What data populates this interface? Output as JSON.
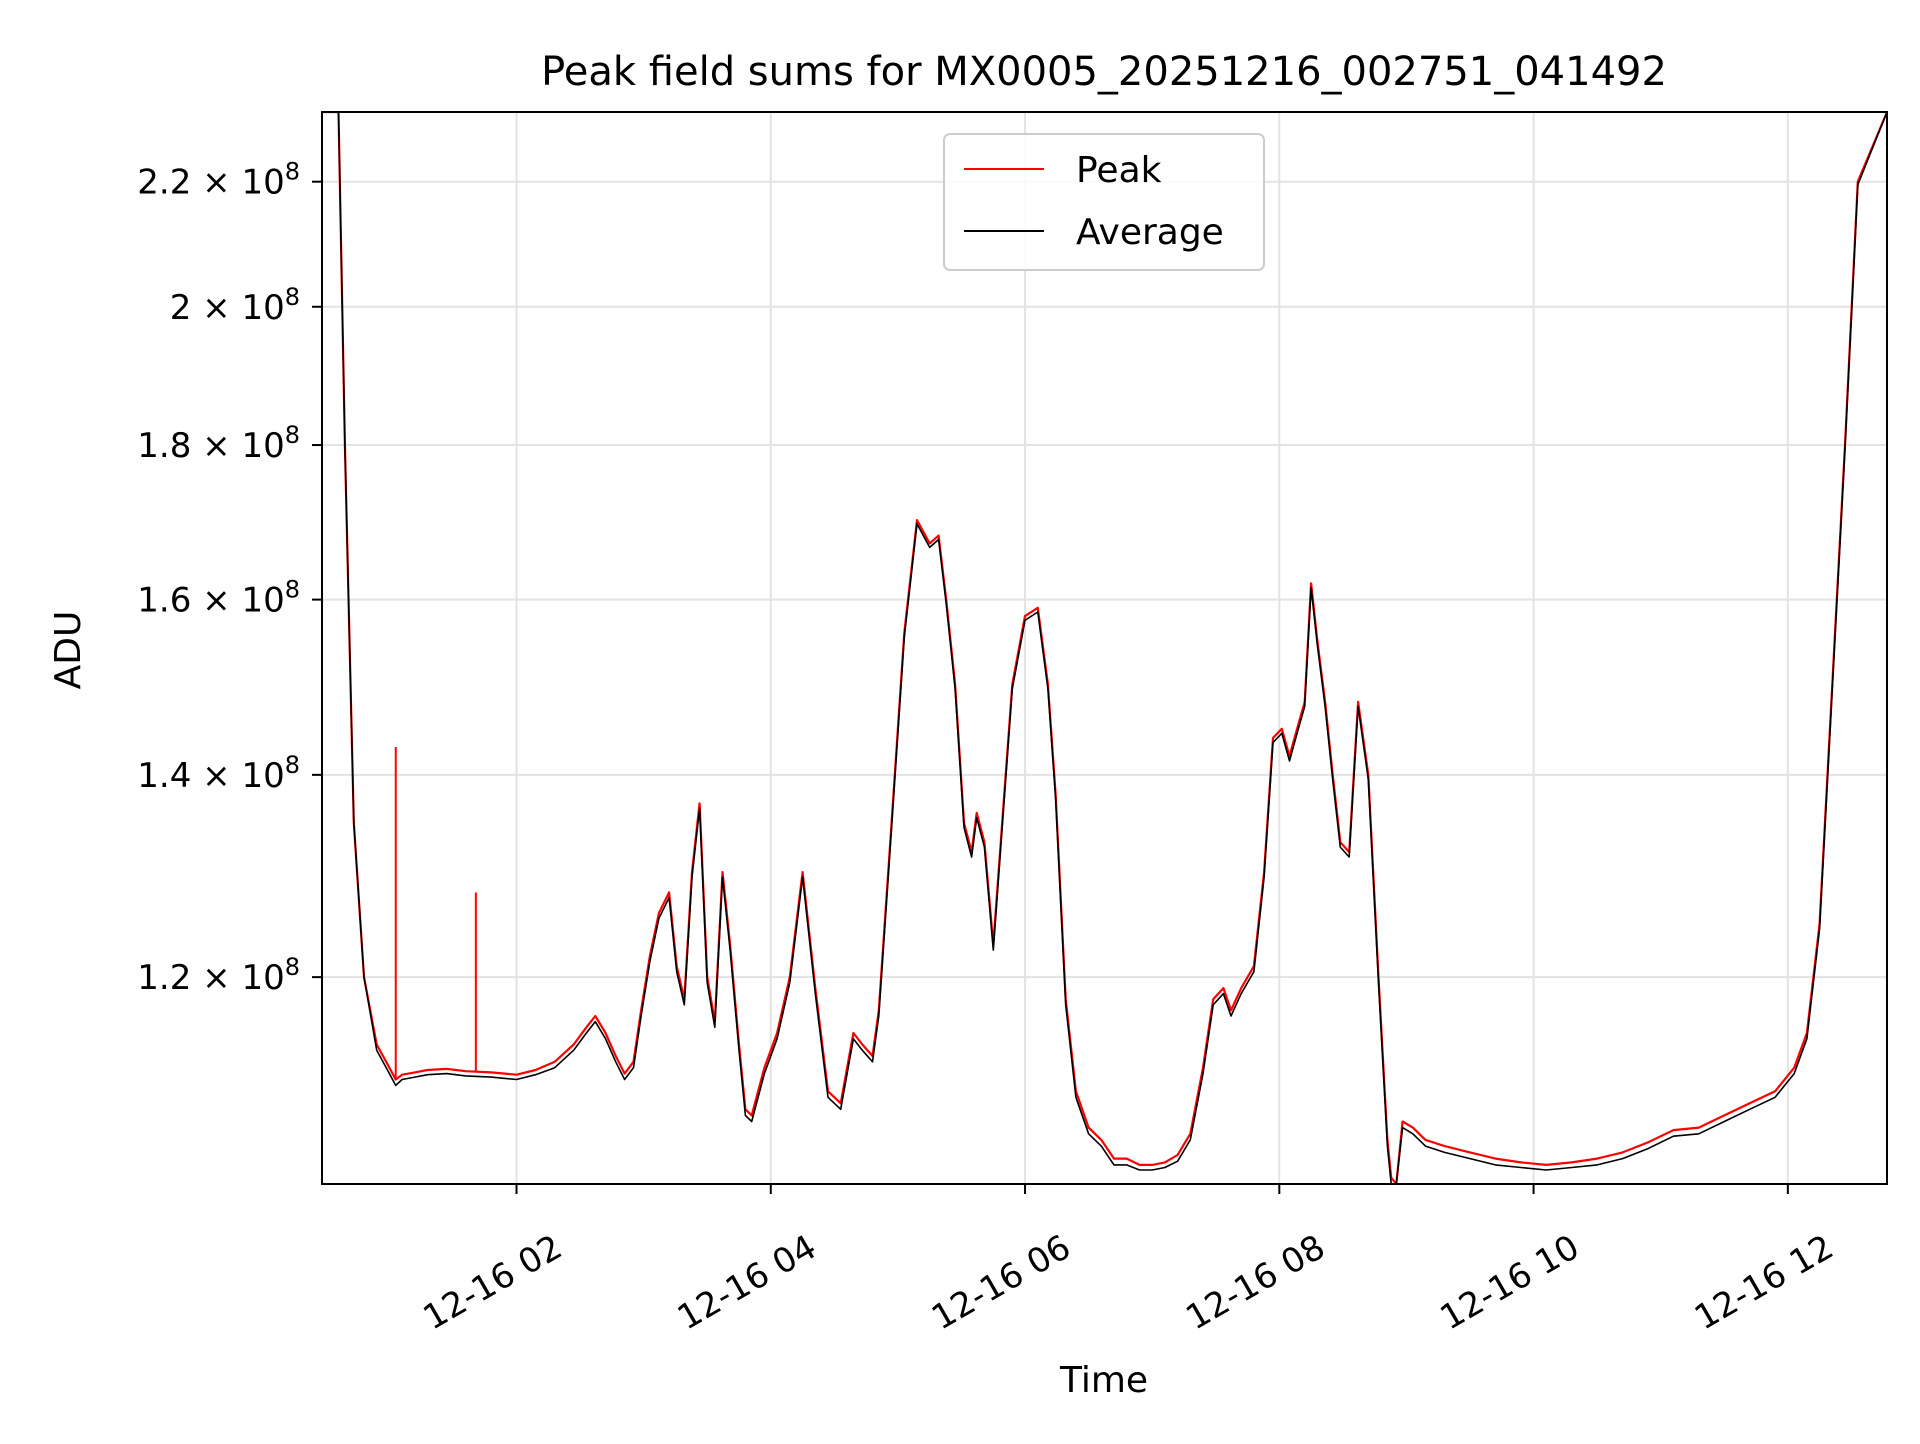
{
  "chart_data": {
    "type": "line",
    "title": "Peak field sums for MX0005_20251216_002751_041492",
    "xlabel": "Time",
    "ylabel": "ADU",
    "yscale": "log",
    "grid": true,
    "legend_position": "upper-center",
    "xlim_hours": [
      0.47,
      12.78
    ],
    "ylim": [
      102500000,
      232000000
    ],
    "x_ticks": [
      {
        "value": 2,
        "label": "12-16 02"
      },
      {
        "value": 4,
        "label": "12-16 04"
      },
      {
        "value": 6,
        "label": "12-16 06"
      },
      {
        "value": 8,
        "label": "12-16 08"
      },
      {
        "value": 10,
        "label": "12-16 10"
      },
      {
        "value": 12,
        "label": "12-16 12"
      }
    ],
    "y_ticks": [
      {
        "value": 120000000,
        "mantissa": "1.2",
        "exponent": "8"
      },
      {
        "value": 140000000,
        "mantissa": "1.4",
        "exponent": "8"
      },
      {
        "value": 160000000,
        "mantissa": "1.6",
        "exponent": "8"
      },
      {
        "value": 180000000,
        "mantissa": "1.8",
        "exponent": "8"
      },
      {
        "value": 200000000,
        "mantissa": "2",
        "exponent": "8"
      },
      {
        "value": 220000000,
        "mantissa": "2.2",
        "exponent": "8"
      }
    ],
    "times_label_suffix": "× 10",
    "series": [
      {
        "name": "Peak",
        "color": "#ff0000",
        "x": [
          0.47,
          0.6,
          0.65,
          0.72,
          0.8,
          0.9,
          1.0,
          1.05,
          1.1,
          1.2,
          1.3,
          1.45,
          1.6,
          1.8,
          2.0,
          2.15,
          2.3,
          2.45,
          2.55,
          2.62,
          2.7,
          2.78,
          2.85,
          2.92,
          2.98,
          3.05,
          3.12,
          3.2,
          3.26,
          3.32,
          3.38,
          3.44,
          3.5,
          3.56,
          3.62,
          3.68,
          3.75,
          3.8,
          3.85,
          3.95,
          4.05,
          4.15,
          4.25,
          4.35,
          4.45,
          4.55,
          4.65,
          4.72,
          4.8,
          4.85,
          4.95,
          5.05,
          5.15,
          5.25,
          5.32,
          5.38,
          5.45,
          5.52,
          5.58,
          5.62,
          5.68,
          5.75,
          5.82,
          5.9,
          6.0,
          6.1,
          6.18,
          6.24,
          6.32,
          6.4,
          6.5,
          6.6,
          6.7,
          6.8,
          6.9,
          7.0,
          7.1,
          7.2,
          7.3,
          7.4,
          7.48,
          7.56,
          7.62,
          7.7,
          7.8,
          7.88,
          7.95,
          8.02,
          8.08,
          8.14,
          8.2,
          8.25,
          8.3,
          8.36,
          8.42,
          8.48,
          8.55,
          8.62,
          8.7,
          8.78,
          8.85,
          8.88,
          8.92,
          8.97,
          9.05,
          9.15,
          9.3,
          9.5,
          9.7,
          9.9,
          10.1,
          10.3,
          10.5,
          10.7,
          10.9,
          11.1,
          11.3,
          11.5,
          11.7,
          11.9,
          12.05,
          12.15,
          12.25,
          12.35,
          12.45,
          12.55,
          12.78
        ],
        "y": [
          232000000,
          232000000,
          180000000,
          135000000,
          120000000,
          114000000,
          112000000,
          111000000,
          111400000,
          111600000,
          111800000,
          111900000,
          111700000,
          111600000,
          111400000,
          111800000,
          112500000,
          114000000,
          115500000,
          116500000,
          115000000,
          113000000,
          111500000,
          112500000,
          117000000,
          122000000,
          126000000,
          128000000,
          121000000,
          118000000,
          130000000,
          137000000,
          120000000,
          116000000,
          130000000,
          123000000,
          114000000,
          108500000,
          108000000,
          112000000,
          115000000,
          120000000,
          130000000,
          119000000,
          110000000,
          109000000,
          115000000,
          114000000,
          113000000,
          117000000,
          135000000,
          156000000,
          170000000,
          167000000,
          168000000,
          160000000,
          150000000,
          135000000,
          132000000,
          136000000,
          133000000,
          123000000,
          135000000,
          150000000,
          158000000,
          159000000,
          150000000,
          138000000,
          118000000,
          110000000,
          107000000,
          106000000,
          104500000,
          104500000,
          104000000,
          104000000,
          104200000,
          104800000,
          106500000,
          112000000,
          118000000,
          119000000,
          117000000,
          119000000,
          121000000,
          130000000,
          144000000,
          145000000,
          142000000,
          145000000,
          148000000,
          162000000,
          155000000,
          148000000,
          140000000,
          133000000,
          132000000,
          148000000,
          140000000,
          120000000,
          106000000,
          103000000,
          102500000,
          107500000,
          107000000,
          106000000,
          105500000,
          105000000,
          104500000,
          104200000,
          104000000,
          104200000,
          104500000,
          105000000,
          105800000,
          106800000,
          107000000,
          108000000,
          109000000,
          110000000,
          112000000,
          115000000,
          125000000,
          150000000,
          180000000,
          220000000,
          232000000
        ],
        "spikes": [
          {
            "x": 1.05,
            "y": 143000000
          },
          {
            "x": 1.68,
            "y": 128000000
          }
        ]
      },
      {
        "name": "Average",
        "color": "#000000",
        "x": [
          0.47,
          0.6,
          0.65,
          0.72,
          0.8,
          0.9,
          1.0,
          1.05,
          1.1,
          1.2,
          1.3,
          1.45,
          1.6,
          1.8,
          2.0,
          2.15,
          2.3,
          2.45,
          2.55,
          2.62,
          2.7,
          2.78,
          2.85,
          2.92,
          2.98,
          3.05,
          3.12,
          3.2,
          3.26,
          3.32,
          3.38,
          3.44,
          3.5,
          3.56,
          3.62,
          3.68,
          3.75,
          3.8,
          3.85,
          3.95,
          4.05,
          4.15,
          4.25,
          4.35,
          4.45,
          4.55,
          4.65,
          4.72,
          4.8,
          4.85,
          4.95,
          5.05,
          5.15,
          5.25,
          5.32,
          5.38,
          5.45,
          5.52,
          5.58,
          5.62,
          5.68,
          5.75,
          5.82,
          5.9,
          6.0,
          6.1,
          6.18,
          6.24,
          6.32,
          6.4,
          6.5,
          6.6,
          6.7,
          6.8,
          6.9,
          7.0,
          7.1,
          7.2,
          7.3,
          7.4,
          7.48,
          7.56,
          7.62,
          7.7,
          7.8,
          7.88,
          7.95,
          8.02,
          8.08,
          8.14,
          8.2,
          8.25,
          8.3,
          8.36,
          8.42,
          8.48,
          8.55,
          8.62,
          8.7,
          8.78,
          8.85,
          8.88,
          8.92,
          8.97,
          9.05,
          9.15,
          9.3,
          9.5,
          9.7,
          9.9,
          10.1,
          10.3,
          10.5,
          10.7,
          10.9,
          11.1,
          11.3,
          11.5,
          11.7,
          11.9,
          12.05,
          12.15,
          12.25,
          12.35,
          12.45,
          12.55,
          12.78
        ],
        "y": [
          232000000,
          232000000,
          180000000,
          135000000,
          120000000,
          113500000,
          111500000,
          110500000,
          111000000,
          111200000,
          111400000,
          111500000,
          111300000,
          111200000,
          111000000,
          111400000,
          112000000,
          113500000,
          115000000,
          116000000,
          114500000,
          112500000,
          111000000,
          112000000,
          116500000,
          121500000,
          125500000,
          127500000,
          120500000,
          117500000,
          129500000,
          136500000,
          119500000,
          115500000,
          129500000,
          122500000,
          113500000,
          108000000,
          107500000,
          111500000,
          114500000,
          119500000,
          129500000,
          118500000,
          109500000,
          108500000,
          114500000,
          113500000,
          112500000,
          116500000,
          134500000,
          155500000,
          169500000,
          166500000,
          167500000,
          159500000,
          149500000,
          134500000,
          131500000,
          135500000,
          132500000,
          122500000,
          134500000,
          149500000,
          157500000,
          158500000,
          149500000,
          137500000,
          117500000,
          109500000,
          106500000,
          105500000,
          104000000,
          104000000,
          103600000,
          103600000,
          103800000,
          104300000,
          106000000,
          111500000,
          117500000,
          118500000,
          116500000,
          118500000,
          120500000,
          129500000,
          143500000,
          144500000,
          141500000,
          144500000,
          147500000,
          161500000,
          154500000,
          147500000,
          139500000,
          132500000,
          131500000,
          147500000,
          139500000,
          119500000,
          105500000,
          102500000,
          102500000,
          107000000,
          106500000,
          105500000,
          105000000,
          104500000,
          104000000,
          103800000,
          103600000,
          103800000,
          104000000,
          104500000,
          105300000,
          106300000,
          106500000,
          107500000,
          108500000,
          109500000,
          111500000,
          114500000,
          124500000,
          149500000,
          179500000,
          219500000,
          232000000
        ],
        "spikes": []
      }
    ]
  }
}
